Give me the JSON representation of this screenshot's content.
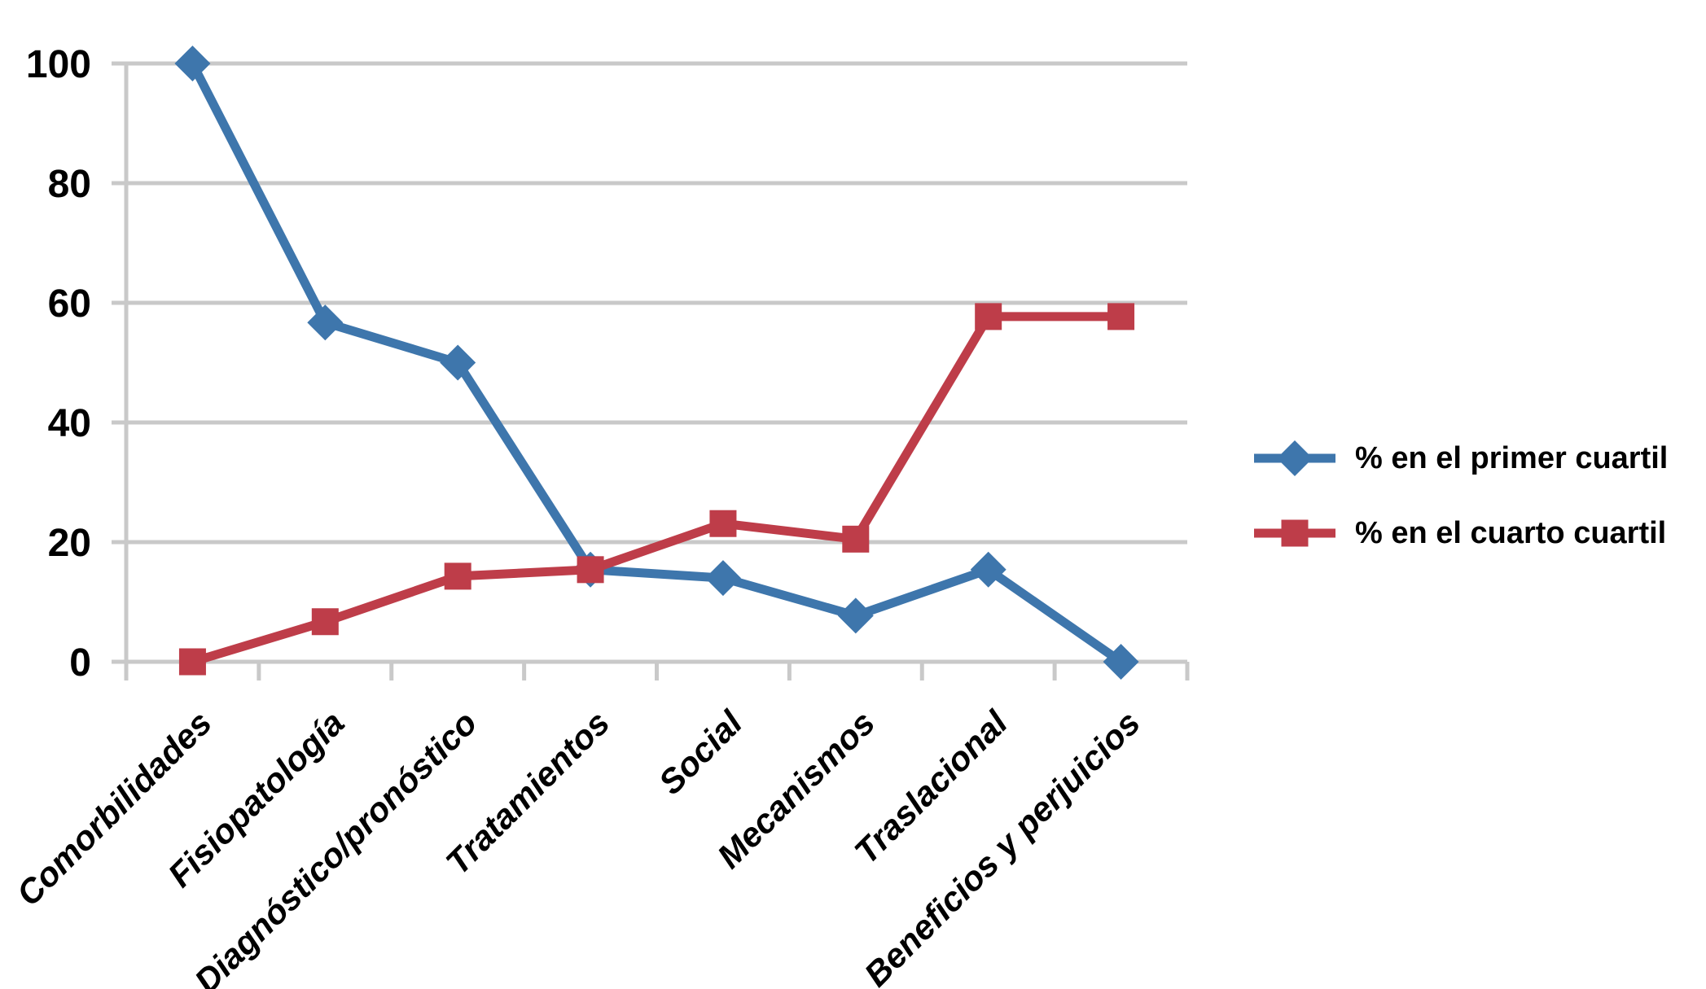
{
  "chart_data": {
    "type": "line",
    "title": "",
    "xlabel": "",
    "ylabel": "",
    "categories": [
      "Comorbilidades",
      "Fisiopatología",
      "Diagnóstico/pronóstico",
      "Tratamientos",
      "Social",
      "Mecanismos",
      "Traslacional",
      "Beneficios y perjuicios"
    ],
    "series": [
      {
        "id": "primer-cuartil",
        "name": "% en el primer cuartil",
        "color": "#3E76AC",
        "marker": "diamond",
        "values": [
          100,
          56.7,
          50,
          15.4,
          14,
          7.7,
          15.4,
          0
        ]
      },
      {
        "id": "cuarto-cuartil",
        "name": "% en el cuarto cuartil",
        "color": "#BE3D49",
        "marker": "square",
        "values": [
          0,
          6.7,
          14.3,
          15.4,
          23.1,
          20.5,
          57.7,
          57.7
        ]
      }
    ],
    "ylim": [
      0,
      100
    ],
    "yticks": [
      0,
      20,
      40,
      60,
      80,
      100
    ],
    "grid": "horizontal",
    "gridline_color": "#C9C9C9",
    "text_color": "#000000",
    "background": "#FFFFFF",
    "legend_position": "right"
  }
}
